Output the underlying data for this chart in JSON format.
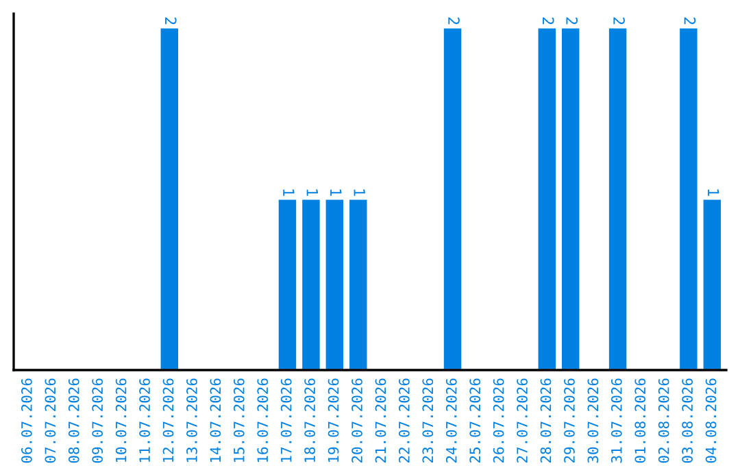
{
  "chart_data": {
    "type": "bar",
    "categories": [
      "06.07.2026",
      "07.07.2026",
      "08.07.2026",
      "09.07.2026",
      "10.07.2026",
      "11.07.2026",
      "12.07.2026",
      "13.07.2026",
      "14.07.2026",
      "15.07.2026",
      "16.07.2026",
      "17.07.2026",
      "18.07.2026",
      "19.07.2026",
      "20.07.2026",
      "21.07.2026",
      "22.07.2026",
      "23.07.2026",
      "24.07.2026",
      "25.07.2026",
      "26.07.2026",
      "27.07.2026",
      "28.07.2026",
      "29.07.2026",
      "30.07.2026",
      "31.07.2026",
      "01.08.2026",
      "02.08.2026",
      "03.08.2026",
      "04.08.2026"
    ],
    "values": [
      null,
      null,
      null,
      null,
      null,
      null,
      2,
      null,
      null,
      null,
      null,
      1,
      1,
      1,
      1,
      null,
      null,
      null,
      2,
      null,
      null,
      null,
      2,
      2,
      null,
      2,
      null,
      null,
      2,
      1
    ],
    "data_labels": true,
    "color": "#0080e0",
    "tick_labels": "x",
    "grid": false,
    "legend": false
  }
}
